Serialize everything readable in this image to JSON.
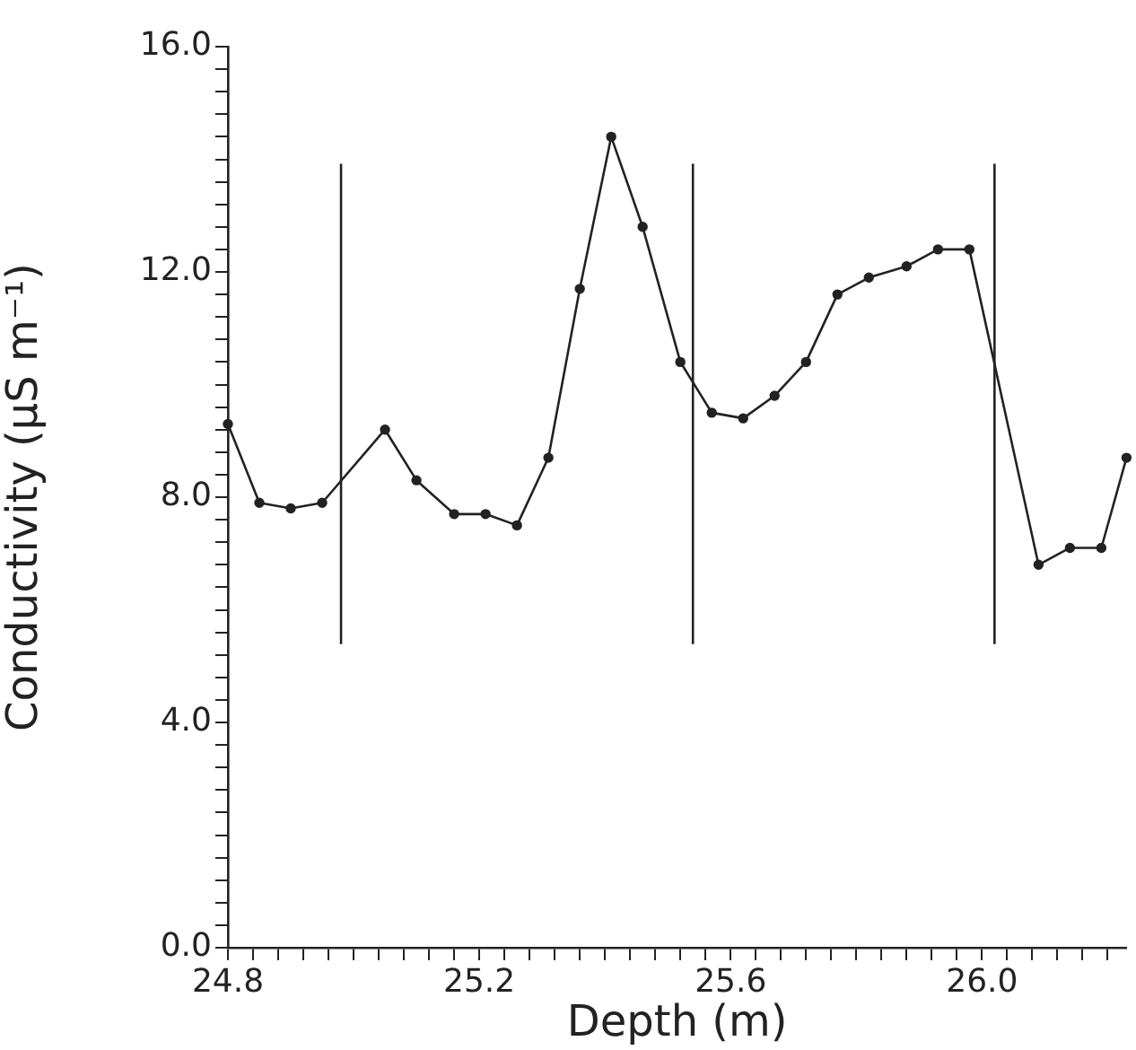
{
  "chart_data": {
    "type": "line",
    "xlabel": "Depth (m)",
    "ylabel": "Conductivity (μS m⁻¹)",
    "x": [
      24.8,
      24.85,
      24.9,
      24.95,
      25.05,
      25.1,
      25.16,
      25.21,
      25.26,
      25.31,
      25.36,
      25.41,
      25.46,
      25.52,
      25.57,
      25.62,
      25.67,
      25.72,
      25.77,
      25.82,
      25.88,
      25.93,
      25.98,
      26.09,
      26.14,
      26.19,
      26.23
    ],
    "series": [
      {
        "color": "#222222",
        "values": [
          9.3,
          7.9,
          7.8,
          7.9,
          9.2,
          8.3,
          7.7,
          7.7,
          7.5,
          8.7,
          11.7,
          14.4,
          12.8,
          10.4,
          9.5,
          9.4,
          9.8,
          10.4,
          11.6,
          11.9,
          12.1,
          12.4,
          12.4,
          6.8,
          7.1,
          7.1,
          8.7
        ]
      }
    ],
    "xlim": [
      24.8,
      26.23
    ],
    "xticks": [
      {
        "value": 24.8,
        "label": "24.8"
      },
      {
        "value": 24.84,
        "label": null
      },
      {
        "value": 24.88,
        "label": null
      },
      {
        "value": 24.92,
        "label": null
      },
      {
        "value": 24.96,
        "label": null
      },
      {
        "value": 25.0,
        "label": null
      },
      {
        "value": 25.04,
        "label": null
      },
      {
        "value": 25.08,
        "label": null
      },
      {
        "value": 25.12,
        "label": null
      },
      {
        "value": 25.16,
        "label": null
      },
      {
        "value": 25.2,
        "label": "25.2"
      },
      {
        "value": 25.24,
        "label": null
      },
      {
        "value": 25.28,
        "label": null
      },
      {
        "value": 25.32,
        "label": null
      },
      {
        "value": 25.36,
        "label": null
      },
      {
        "value": 25.4,
        "label": null
      },
      {
        "value": 25.44,
        "label": null
      },
      {
        "value": 25.48,
        "label": null
      },
      {
        "value": 25.52,
        "label": null
      },
      {
        "value": 25.56,
        "label": null
      },
      {
        "value": 25.6,
        "label": "25.6"
      },
      {
        "value": 25.64,
        "label": null
      },
      {
        "value": 25.68,
        "label": null
      },
      {
        "value": 25.72,
        "label": null
      },
      {
        "value": 25.76,
        "label": null
      },
      {
        "value": 25.8,
        "label": null
      },
      {
        "value": 25.84,
        "label": null
      },
      {
        "value": 25.88,
        "label": null
      },
      {
        "value": 25.92,
        "label": null
      },
      {
        "value": 25.96,
        "label": null
      },
      {
        "value": 26.0,
        "label": "26.0"
      },
      {
        "value": 26.04,
        "label": null
      },
      {
        "value": 26.08,
        "label": null
      },
      {
        "value": 26.12,
        "label": null
      },
      {
        "value": 26.16,
        "label": null
      },
      {
        "value": 26.2,
        "label": null
      }
    ],
    "ylim": [
      0,
      16
    ],
    "yticks": [
      {
        "value": 0,
        "label": "0.0"
      },
      {
        "value": 0.4,
        "label": null
      },
      {
        "value": 0.8,
        "label": null
      },
      {
        "value": 1.2,
        "label": null
      },
      {
        "value": 1.6,
        "label": null
      },
      {
        "value": 2.0,
        "label": null
      },
      {
        "value": 2.4,
        "label": null
      },
      {
        "value": 2.8,
        "label": null
      },
      {
        "value": 3.2,
        "label": null
      },
      {
        "value": 3.6,
        "label": null
      },
      {
        "value": 4,
        "label": "4.0"
      },
      {
        "value": 4.4,
        "label": null
      },
      {
        "value": 4.8,
        "label": null
      },
      {
        "value": 5.2,
        "label": null
      },
      {
        "value": 5.6,
        "label": null
      },
      {
        "value": 6.0,
        "label": null
      },
      {
        "value": 6.4,
        "label": null
      },
      {
        "value": 6.8,
        "label": null
      },
      {
        "value": 7.2,
        "label": null
      },
      {
        "value": 7.6,
        "label": null
      },
      {
        "value": 8,
        "label": "8.0"
      },
      {
        "value": 8.4,
        "label": null
      },
      {
        "value": 8.8,
        "label": null
      },
      {
        "value": 9.2,
        "label": null
      },
      {
        "value": 9.6,
        "label": null
      },
      {
        "value": 10.0,
        "label": null
      },
      {
        "value": 10.4,
        "label": null
      },
      {
        "value": 10.8,
        "label": null
      },
      {
        "value": 11.2,
        "label": null
      },
      {
        "value": 11.6,
        "label": null
      },
      {
        "value": 12,
        "label": "12.0"
      },
      {
        "value": 12.4,
        "label": null
      },
      {
        "value": 12.8,
        "label": null
      },
      {
        "value": 13.2,
        "label": null
      },
      {
        "value": 13.6,
        "label": null
      },
      {
        "value": 14.0,
        "label": null
      },
      {
        "value": 14.4,
        "label": null
      },
      {
        "value": 14.8,
        "label": null
      },
      {
        "value": 15.2,
        "label": null
      },
      {
        "value": 15.6,
        "label": null
      },
      {
        "value": 16,
        "label": "16.0"
      }
    ],
    "ref_lines": [
      {
        "axis": "x",
        "value": 24.98,
        "color": "#222222"
      },
      {
        "axis": "x",
        "value": 25.54,
        "color": "#222222"
      },
      {
        "axis": "x",
        "value": 26.02,
        "color": "#222222"
      }
    ],
    "marker": "circle",
    "line_style": "solid",
    "grid": false,
    "legend": false
  }
}
